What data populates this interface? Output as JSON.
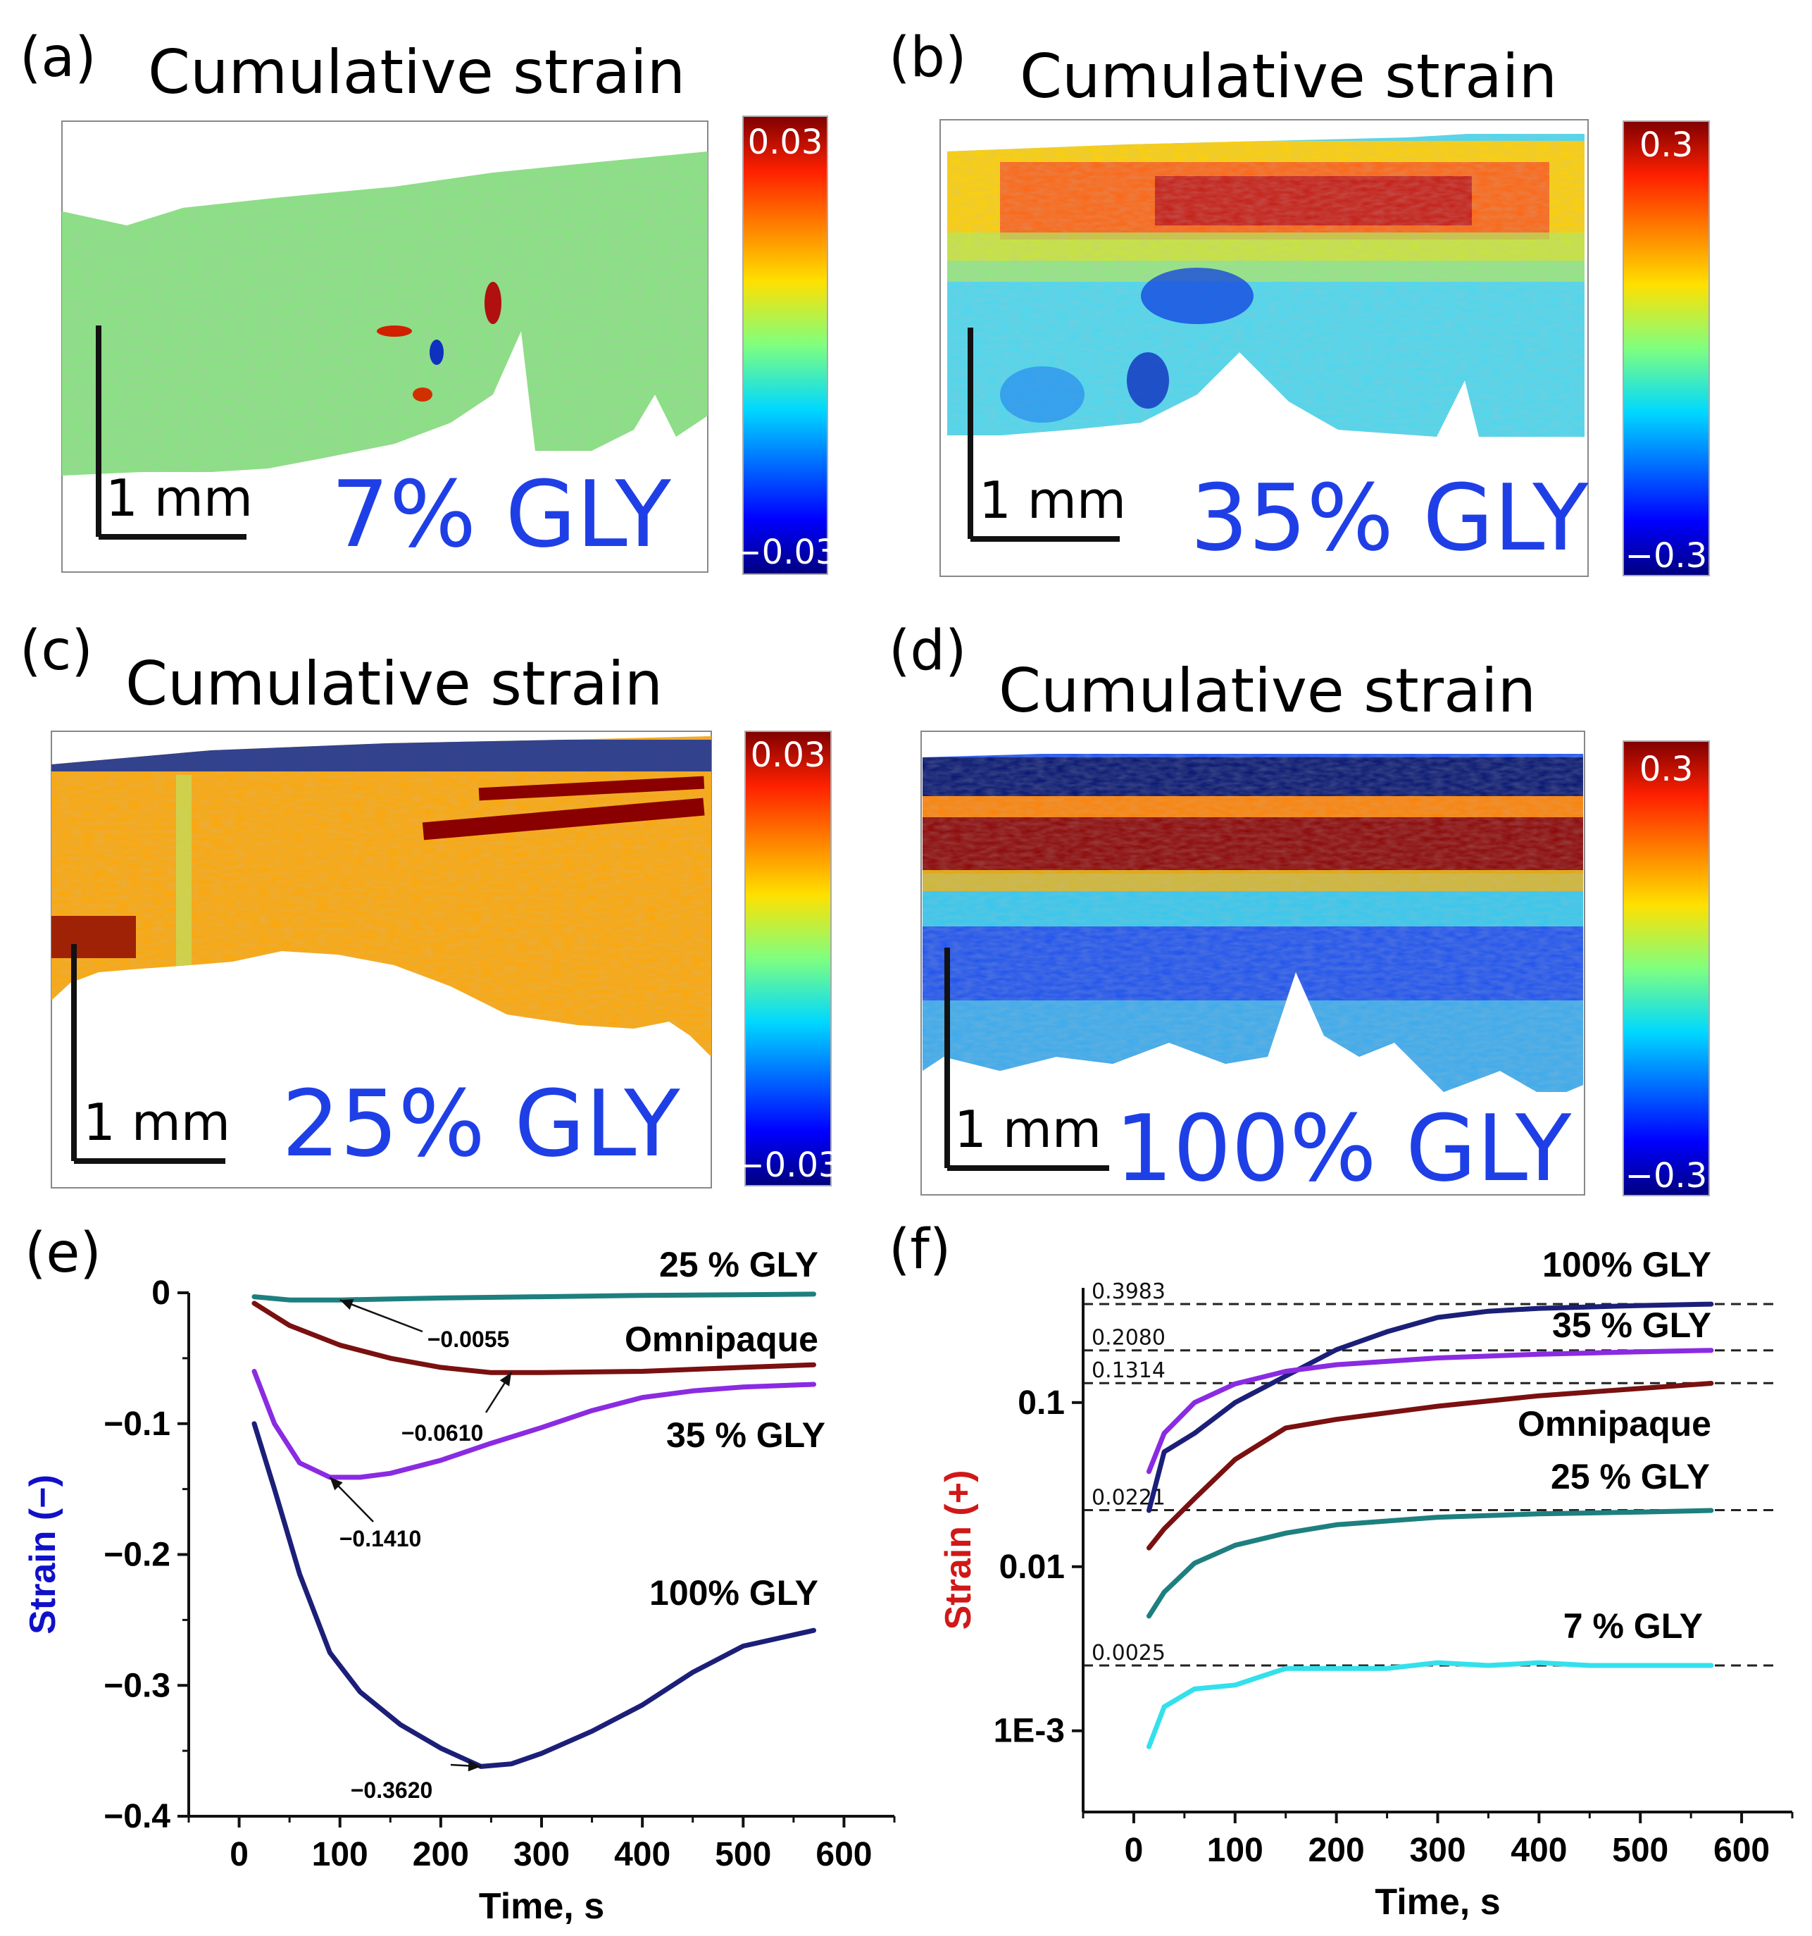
{
  "panels": {
    "a": {
      "letter": "(a)",
      "title": "Cumulative strain",
      "scale": "1 mm",
      "label": "7% GLY",
      "cbar_max": "0.03",
      "cbar_min": "−0.03"
    },
    "b": {
      "letter": "(b)",
      "title": "Cumulative strain",
      "scale": "1 mm",
      "label": "35% GLY",
      "cbar_max": "0.3",
      "cbar_min": "−0.3"
    },
    "c": {
      "letter": "(c)",
      "title": "Cumulative strain",
      "scale": "1 mm",
      "label": "25% GLY",
      "cbar_max": "0.03",
      "cbar_min": "−0.03"
    },
    "d": {
      "letter": "(d)",
      "title": "Cumulative strain",
      "scale": "1 mm",
      "label": "100% GLY",
      "cbar_max": "0.3",
      "cbar_min": "−0.3"
    },
    "e": {
      "letter": "(e)"
    },
    "f": {
      "letter": "(f)"
    }
  },
  "colors": {
    "blue_label": "#1f3fe6",
    "navy": "#1c1f78",
    "purple": "#8a2be2",
    "maroon": "#7a1010",
    "teal": "#1e7f7f",
    "cyan": "#33e0ec",
    "ylabel_e": "#1010c8",
    "ylabel_f": "#d01818"
  },
  "chart_data": [
    {
      "type": "line",
      "panel": "(e)",
      "xlabel": "Time, s",
      "ylabel": "Strain (−)",
      "xlim": [
        -50,
        650
      ],
      "ylim": [
        -0.4,
        0
      ],
      "xticks": [
        0,
        100,
        200,
        300,
        400,
        500,
        600
      ],
      "xtick_labels": [
        "0",
        "100",
        "200",
        "300",
        "400",
        "500",
        "600"
      ],
      "yticks": [
        0,
        -0.1,
        -0.2,
        -0.3,
        -0.4
      ],
      "ytick_labels": [
        "0",
        "−0.1",
        "−0.2",
        "−0.3",
        "−0.4"
      ],
      "series": [
        {
          "name": "25 % GLY",
          "color": "#1e7f7f",
          "x": [
            15,
            50,
            100,
            200,
            300,
            400,
            500,
            570
          ],
          "y": [
            -0.003,
            -0.0055,
            -0.0055,
            -0.004,
            -0.003,
            -0.002,
            -0.0015,
            -0.001
          ]
        },
        {
          "name": "Omnipaque",
          "color": "#7a1010",
          "x": [
            15,
            50,
            100,
            150,
            200,
            250,
            300,
            400,
            500,
            570
          ],
          "y": [
            -0.008,
            -0.025,
            -0.04,
            -0.05,
            -0.057,
            -0.061,
            -0.061,
            -0.06,
            -0.057,
            -0.055
          ]
        },
        {
          "name": "35 % GLY",
          "color": "#8a2be2",
          "x": [
            15,
            35,
            60,
            90,
            120,
            150,
            200,
            250,
            300,
            350,
            400,
            450,
            500,
            570
          ],
          "y": [
            -0.06,
            -0.1,
            -0.13,
            -0.141,
            -0.141,
            -0.138,
            -0.128,
            -0.115,
            -0.103,
            -0.09,
            -0.08,
            -0.075,
            -0.072,
            -0.07
          ]
        },
        {
          "name": "100% GLY",
          "color": "#1c1f78",
          "x": [
            15,
            35,
            60,
            90,
            120,
            160,
            200,
            240,
            270,
            300,
            350,
            400,
            450,
            500,
            570
          ],
          "y": [
            -0.1,
            -0.15,
            -0.215,
            -0.275,
            -0.305,
            -0.33,
            -0.348,
            -0.362,
            -0.36,
            -0.352,
            -0.335,
            -0.315,
            -0.29,
            -0.27,
            -0.258
          ]
        }
      ],
      "series_labels": [
        "25 % GLY",
        "Omnipaque",
        "35 % GLY",
        "100% GLY"
      ],
      "annotations": [
        "−0.0055",
        "−0.0610",
        "−0.1410",
        "−0.3620"
      ],
      "annotation_points": [
        [
          100,
          -0.0055
        ],
        [
          270,
          -0.061
        ],
        [
          90,
          -0.141
        ],
        [
          240,
          -0.362
        ]
      ]
    },
    {
      "type": "line",
      "panel": "(f)",
      "xlabel": "Time, s",
      "ylabel": "Strain (+)",
      "yscale": "log",
      "xlim": [
        -50,
        650
      ],
      "ylim": [
        0.00032,
        0.5
      ],
      "xticks": [
        0,
        100,
        200,
        300,
        400,
        500,
        600
      ],
      "xtick_labels": [
        "0",
        "100",
        "200",
        "300",
        "400",
        "500",
        "600"
      ],
      "yticks": [
        0.1,
        0.01,
        0.001
      ],
      "ytick_labels": [
        "0.1",
        "0.01",
        "1E-3"
      ],
      "series": [
        {
          "name": "100% GLY",
          "color": "#1c1f78",
          "x": [
            15,
            30,
            60,
            100,
            150,
            200,
            250,
            300,
            350,
            400,
            500,
            570
          ],
          "y": [
            0.022,
            0.05,
            0.065,
            0.1,
            0.145,
            0.21,
            0.27,
            0.33,
            0.36,
            0.375,
            0.39,
            0.398
          ]
        },
        {
          "name": "35 % GLY",
          "color": "#8a2be2",
          "x": [
            15,
            30,
            60,
            100,
            150,
            200,
            300,
            400,
            500,
            570
          ],
          "y": [
            0.038,
            0.065,
            0.1,
            0.13,
            0.155,
            0.17,
            0.187,
            0.197,
            0.204,
            0.208
          ]
        },
        {
          "name": "Omnipaque",
          "color": "#7a1010",
          "x": [
            15,
            30,
            60,
            100,
            150,
            200,
            300,
            400,
            500,
            570
          ],
          "y": [
            0.013,
            0.017,
            0.026,
            0.045,
            0.07,
            0.079,
            0.095,
            0.11,
            0.122,
            0.131
          ]
        },
        {
          "name": "25 % GLY",
          "color": "#1e7f7f",
          "x": [
            15,
            30,
            60,
            100,
            150,
            200,
            300,
            400,
            500,
            570
          ],
          "y": [
            0.005,
            0.007,
            0.0105,
            0.0135,
            0.016,
            0.018,
            0.02,
            0.021,
            0.0215,
            0.022
          ]
        },
        {
          "name": "7 % GLY",
          "color": "#33e0ec",
          "x": [
            15,
            30,
            60,
            100,
            150,
            200,
            250,
            300,
            350,
            400,
            450,
            500,
            570
          ],
          "y": [
            0.0008,
            0.0014,
            0.0018,
            0.0019,
            0.0024,
            0.0024,
            0.0024,
            0.0026,
            0.0025,
            0.0026,
            0.0025,
            0.0025,
            0.0025
          ]
        }
      ],
      "series_labels": [
        "100% GLY",
        "35 % GLY",
        "Omnipaque",
        "25 % GLY",
        "7 % GLY"
      ],
      "reference_lines": [
        0.3983,
        0.208,
        0.1314,
        0.0221,
        0.0025
      ],
      "reference_labels": [
        "0.3983",
        "0.2080",
        "0.1314",
        "0.0221",
        "0.0025"
      ]
    }
  ]
}
